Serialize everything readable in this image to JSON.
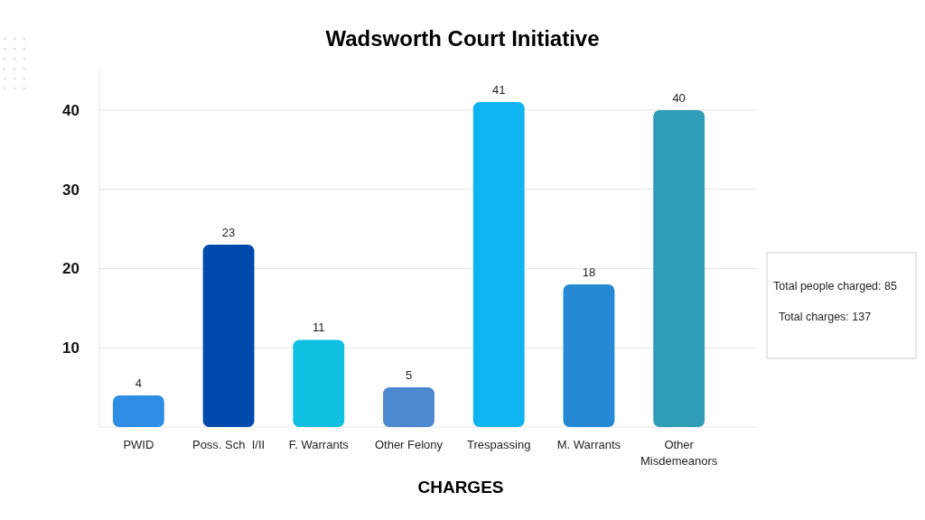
{
  "chart_data": {
    "type": "bar",
    "title": "Wadsworth Court Initiative",
    "xlabel": "CHARGES",
    "categories": [
      "PWID",
      "Poss. Sch  I/II",
      "F. Warrants",
      "Other Felony",
      "Trespassing",
      "M. Warrants",
      "Other Misdemeanors"
    ],
    "values": [
      4,
      23,
      11,
      5,
      41,
      18,
      40
    ],
    "colors": [
      "#2e8de4",
      "#014aad",
      "#0fc0e0",
      "#4b88d0",
      "#0db4ef",
      "#2589d4",
      "#2e9db8"
    ],
    "ylim": [
      0,
      45
    ],
    "yticks": [
      {
        "value": 0,
        "label": null
      },
      10,
      20,
      30,
      40
    ],
    "grid": "y",
    "data_labels": true,
    "annotations": [
      "Total people charged: 85",
      "Total charges: 137"
    ]
  }
}
